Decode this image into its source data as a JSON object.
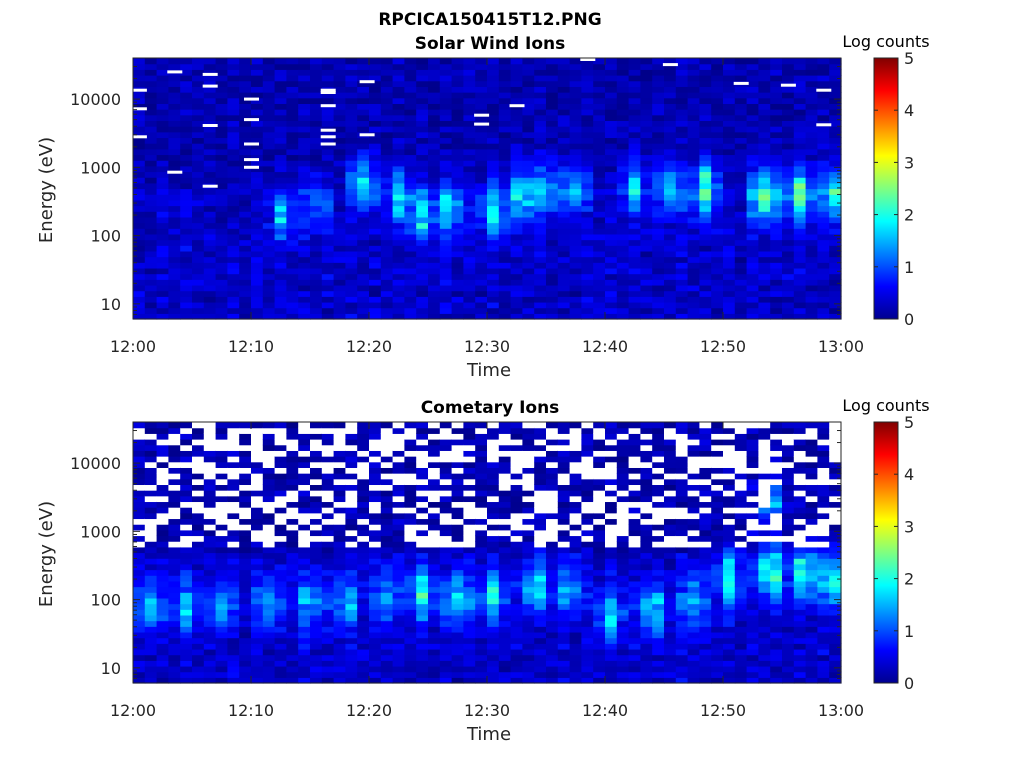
{
  "figure_title": "RPCICA150415T12.PNG",
  "chart_data": [
    {
      "type": "heatmap",
      "title": "Solar Wind Ions",
      "xlabel": "Time",
      "ylabel": "Energy (eV)",
      "x_ticks": [
        "12:00",
        "12:10",
        "12:20",
        "12:30",
        "12:40",
        "12:50",
        "13:00"
      ],
      "x_range": [
        "12:00",
        "13:00"
      ],
      "y_ticks": [
        10,
        100,
        1000,
        10000
      ],
      "y_tick_labels": [
        "10",
        "100",
        "1000",
        "10000"
      ],
      "y_range": [
        6,
        40000
      ],
      "y_scale": "log",
      "colorbar": {
        "title": "Log counts",
        "ticks": [
          0,
          1,
          2,
          3,
          4,
          5
        ],
        "range": [
          0,
          5
        ],
        "colormap": "jet"
      },
      "seed": 7,
      "peaks": [
        {
          "t": 12.75,
          "e": 200,
          "v": 1.2
        },
        {
          "t": 15.5,
          "e": 300,
          "v": 1.0
        },
        {
          "t": 19.5,
          "e": 600,
          "v": 1.6
        },
        {
          "t": 22.5,
          "e": 400,
          "v": 1.4
        },
        {
          "t": 24.5,
          "e": 200,
          "v": 1.6
        },
        {
          "t": 27.0,
          "e": 250,
          "v": 1.5
        },
        {
          "t": 30.5,
          "e": 250,
          "v": 1.6
        },
        {
          "t": 33.0,
          "e": 400,
          "v": 1.5
        },
        {
          "t": 35.0,
          "e": 500,
          "v": 1.3
        },
        {
          "t": 37.5,
          "e": 500,
          "v": 1.4
        },
        {
          "t": 42.5,
          "e": 500,
          "v": 1.4
        },
        {
          "t": 45.5,
          "e": 500,
          "v": 1.5
        },
        {
          "t": 48.5,
          "e": 500,
          "v": 2.3
        },
        {
          "t": 53.5,
          "e": 400,
          "v": 2.3
        },
        {
          "t": 56.5,
          "e": 400,
          "v": 2.1
        },
        {
          "t": 59.5,
          "e": 400,
          "v": 2.1
        }
      ],
      "white_marks": [
        {
          "t": 0.5,
          "e": 13500
        },
        {
          "t": 0.5,
          "e": 7200
        },
        {
          "t": 0.5,
          "e": 2800
        },
        {
          "t": 3.5,
          "e": 25000
        },
        {
          "t": 3.5,
          "e": 850
        },
        {
          "t": 6.5,
          "e": 23000
        },
        {
          "t": 6.5,
          "e": 15500
        },
        {
          "t": 6.5,
          "e": 4100
        },
        {
          "t": 6.5,
          "e": 530
        },
        {
          "t": 10.0,
          "e": 10000
        },
        {
          "t": 10.0,
          "e": 5000
        },
        {
          "t": 10.0,
          "e": 2200
        },
        {
          "t": 10.0,
          "e": 1300
        },
        {
          "t": 10.0,
          "e": 1000
        },
        {
          "t": 16.5,
          "e": 13500
        },
        {
          "t": 16.5,
          "e": 12500
        },
        {
          "t": 16.5,
          "e": 8000
        },
        {
          "t": 16.5,
          "e": 3500
        },
        {
          "t": 16.5,
          "e": 2800
        },
        {
          "t": 16.5,
          "e": 2200
        },
        {
          "t": 19.8,
          "e": 18000
        },
        {
          "t": 19.8,
          "e": 3000
        },
        {
          "t": 29.5,
          "e": 5800
        },
        {
          "t": 29.5,
          "e": 4300
        },
        {
          "t": 32.5,
          "e": 8000
        },
        {
          "t": 38.5,
          "e": 38000
        },
        {
          "t": 45.5,
          "e": 32000
        },
        {
          "t": 51.5,
          "e": 17000
        },
        {
          "t": 55.5,
          "e": 16000
        },
        {
          "t": 58.5,
          "e": 13500
        },
        {
          "t": 58.5,
          "e": 4200
        }
      ]
    },
    {
      "type": "heatmap",
      "title": "Cometary Ions",
      "xlabel": "Time",
      "ylabel": "Energy (eV)",
      "x_ticks": [
        "12:00",
        "12:10",
        "12:20",
        "12:30",
        "12:40",
        "12:50",
        "13:00"
      ],
      "x_range": [
        "12:00",
        "13:00"
      ],
      "y_ticks": [
        10,
        100,
        1000,
        10000
      ],
      "y_tick_labels": [
        "10",
        "100",
        "1000",
        "10000"
      ],
      "y_range": [
        6,
        40000
      ],
      "y_scale": "log",
      "colorbar": {
        "title": "Log counts",
        "ticks": [
          0,
          1,
          2,
          3,
          4,
          5
        ],
        "range": [
          0,
          5
        ],
        "colormap": "jet"
      },
      "seed": 13,
      "peaks": [
        {
          "t": 1.5,
          "e": 80,
          "v": 1.4
        },
        {
          "t": 4.5,
          "e": 80,
          "v": 1.3
        },
        {
          "t": 7.5,
          "e": 80,
          "v": 1.3
        },
        {
          "t": 11.5,
          "e": 90,
          "v": 1.3
        },
        {
          "t": 15.0,
          "e": 90,
          "v": 1.4
        },
        {
          "t": 18.0,
          "e": 90,
          "v": 1.4
        },
        {
          "t": 21.5,
          "e": 110,
          "v": 1.3
        },
        {
          "t": 24.5,
          "e": 120,
          "v": 1.7
        },
        {
          "t": 27.5,
          "e": 100,
          "v": 1.8
        },
        {
          "t": 30.5,
          "e": 110,
          "v": 1.7
        },
        {
          "t": 34.0,
          "e": 150,
          "v": 1.6
        },
        {
          "t": 37.0,
          "e": 140,
          "v": 1.4
        },
        {
          "t": 40.5,
          "e": 60,
          "v": 1.5
        },
        {
          "t": 44.0,
          "e": 70,
          "v": 1.6
        },
        {
          "t": 47.5,
          "e": 90,
          "v": 1.5
        },
        {
          "t": 50.5,
          "e": 200,
          "v": 1.7
        },
        {
          "t": 54.0,
          "e": 250,
          "v": 2.1
        },
        {
          "t": 57.0,
          "e": 250,
          "v": 2.0
        },
        {
          "t": 59.5,
          "e": 200,
          "v": 2.1
        },
        {
          "t": 54.0,
          "e": 2500,
          "v": 1.4
        }
      ],
      "white_cutoff_eV": 600
    }
  ]
}
